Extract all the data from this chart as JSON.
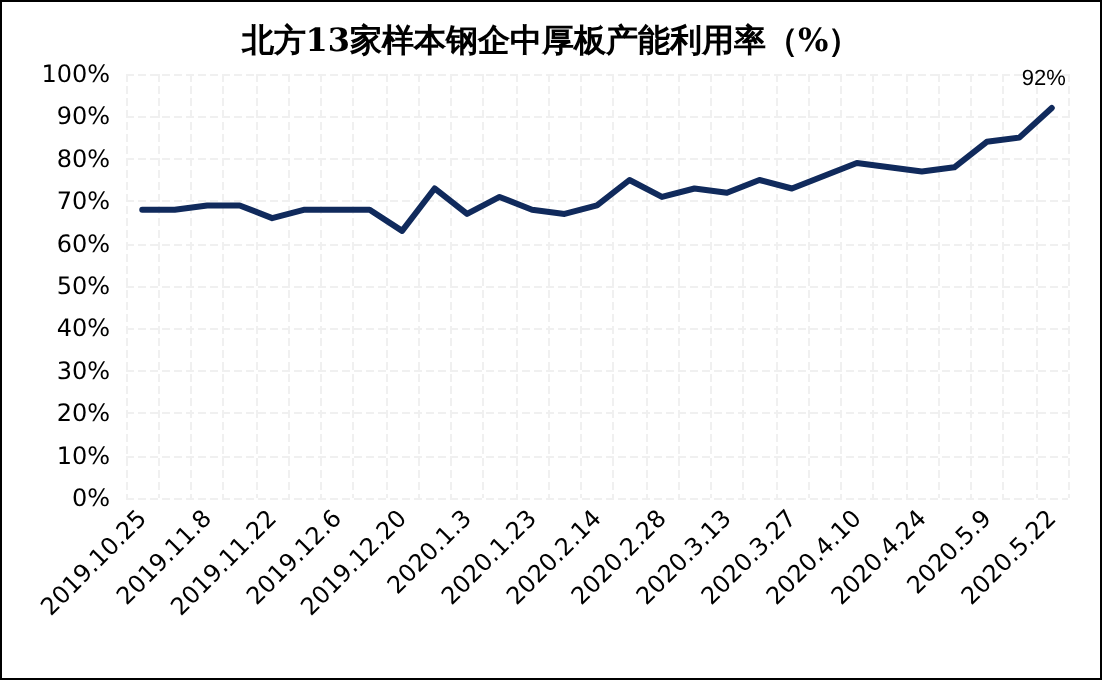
{
  "chart_data": {
    "type": "line",
    "title": "北方13家样本钢企中厚板产能利用率（%）",
    "categories": [
      "2019.10.25",
      null,
      "2019.11.8",
      null,
      "2019.11.22",
      null,
      "2019.12.6",
      null,
      "2019.12.20",
      null,
      "2020.1.3",
      null,
      "2020.1.23",
      null,
      "2020.2.14",
      null,
      "2020.2.28",
      null,
      "2020.3.13",
      null,
      "2020.3.27",
      null,
      "2020.4.10",
      null,
      "2020.4.24",
      null,
      "2020.5.9",
      null,
      "2020.5.22"
    ],
    "series": [
      {
        "color": "#102a5c",
        "values": [
          68,
          68,
          69,
          69,
          66,
          68,
          68,
          68,
          63,
          73,
          67,
          71,
          68,
          67,
          69,
          75,
          71,
          73,
          72,
          75,
          73,
          76,
          79,
          78,
          77,
          78,
          84,
          85,
          92
        ],
        "value_labels": [
          null,
          null,
          null,
          null,
          null,
          null,
          null,
          null,
          null,
          null,
          null,
          null,
          null,
          null,
          null,
          null,
          null,
          null,
          null,
          null,
          null,
          null,
          null,
          null,
          null,
          null,
          null,
          null,
          "92%"
        ]
      }
    ],
    "ylim": [
      0,
      100
    ],
    "yticks": [
      {
        "value": 0,
        "label": "0%"
      },
      {
        "value": 10,
        "label": "10%"
      },
      {
        "value": 20,
        "label": "20%"
      },
      {
        "value": 30,
        "label": "30%"
      },
      {
        "value": 40,
        "label": "40%"
      },
      {
        "value": 50,
        "label": "50%"
      },
      {
        "value": 60,
        "label": "60%"
      },
      {
        "value": 70,
        "label": "70%"
      },
      {
        "value": 80,
        "label": "80%"
      },
      {
        "value": 90,
        "label": "90%"
      },
      {
        "value": 100,
        "label": "100%"
      }
    ],
    "grid": true,
    "line_style": "solid"
  }
}
